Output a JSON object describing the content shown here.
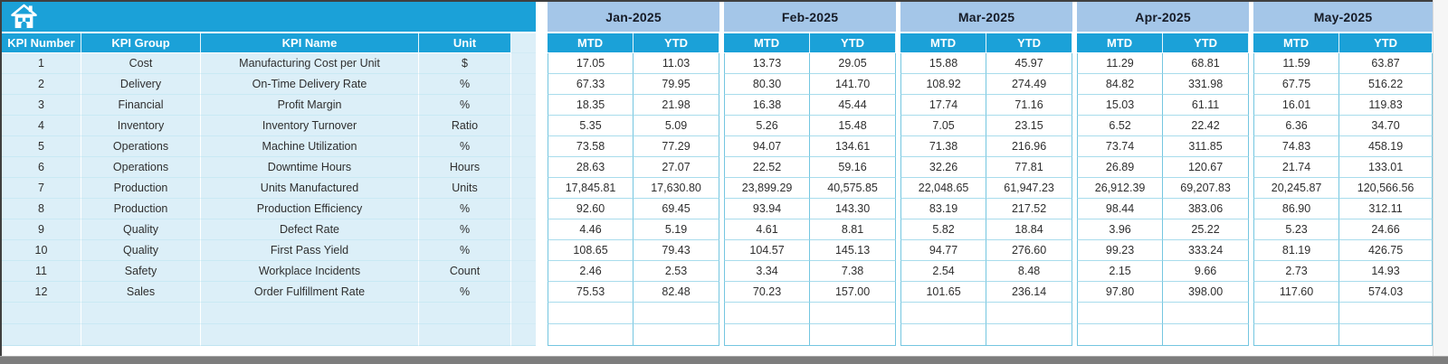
{
  "icons": {
    "home": "home-icon"
  },
  "colors": {
    "header_cyan": "#1BA1D8",
    "month_blue": "#A4C6E8",
    "left_fill": "#DCEFF8",
    "grid_vertical": "#74C6E0",
    "grid_horizontal": "#A8DCEC",
    "bottom_bar": "#7D7D7D"
  },
  "table": {
    "months": [
      "Jan-2025",
      "Feb-2025",
      "Mar-2025",
      "Apr-2025",
      "May-2025"
    ],
    "period_headers": [
      "MTD",
      "YTD"
    ],
    "left_headers": [
      "KPI Number",
      "KPI Group",
      "KPI Name",
      "Unit"
    ],
    "empty_row_count": 2,
    "rows": [
      {
        "number": "1",
        "group": "Cost",
        "name": "Manufacturing Cost per Unit",
        "unit": "$",
        "values": [
          "17.05",
          "11.03",
          "13.73",
          "29.05",
          "15.88",
          "45.97",
          "11.29",
          "68.81",
          "11.59",
          "63.87"
        ]
      },
      {
        "number": "2",
        "group": "Delivery",
        "name": "On-Time Delivery Rate",
        "unit": "%",
        "values": [
          "67.33",
          "79.95",
          "80.30",
          "141.70",
          "108.92",
          "274.49",
          "84.82",
          "331.98",
          "67.75",
          "516.22"
        ]
      },
      {
        "number": "3",
        "group": "Financial",
        "name": "Profit Margin",
        "unit": "%",
        "values": [
          "18.35",
          "21.98",
          "16.38",
          "45.44",
          "17.74",
          "71.16",
          "15.03",
          "61.11",
          "16.01",
          "119.83"
        ]
      },
      {
        "number": "4",
        "group": "Inventory",
        "name": "Inventory Turnover",
        "unit": "Ratio",
        "values": [
          "5.35",
          "5.09",
          "5.26",
          "15.48",
          "7.05",
          "23.15",
          "6.52",
          "22.42",
          "6.36",
          "34.70"
        ]
      },
      {
        "number": "5",
        "group": "Operations",
        "name": "Machine Utilization",
        "unit": "%",
        "values": [
          "73.58",
          "77.29",
          "94.07",
          "134.61",
          "71.38",
          "216.96",
          "73.74",
          "311.85",
          "74.83",
          "458.19"
        ]
      },
      {
        "number": "6",
        "group": "Operations",
        "name": "Downtime Hours",
        "unit": "Hours",
        "values": [
          "28.63",
          "27.07",
          "22.52",
          "59.16",
          "32.26",
          "77.81",
          "26.89",
          "120.67",
          "21.74",
          "133.01"
        ]
      },
      {
        "number": "7",
        "group": "Production",
        "name": "Units Manufactured",
        "unit": "Units",
        "values": [
          "17,845.81",
          "17,630.80",
          "23,899.29",
          "40,575.85",
          "22,048.65",
          "61,947.23",
          "26,912.39",
          "69,207.83",
          "20,245.87",
          "120,566.56"
        ]
      },
      {
        "number": "8",
        "group": "Production",
        "name": "Production Efficiency",
        "unit": "%",
        "values": [
          "92.60",
          "69.45",
          "93.94",
          "143.30",
          "83.19",
          "217.52",
          "98.44",
          "383.06",
          "86.90",
          "312.11"
        ]
      },
      {
        "number": "9",
        "group": "Quality",
        "name": "Defect Rate",
        "unit": "%",
        "values": [
          "4.46",
          "5.19",
          "4.61",
          "8.81",
          "5.82",
          "18.84",
          "3.96",
          "25.22",
          "5.23",
          "24.66"
        ]
      },
      {
        "number": "10",
        "group": "Quality",
        "name": "First Pass Yield",
        "unit": "%",
        "values": [
          "108.65",
          "79.43",
          "104.57",
          "145.13",
          "94.77",
          "276.60",
          "99.23",
          "333.24",
          "81.19",
          "426.75"
        ]
      },
      {
        "number": "11",
        "group": "Safety",
        "name": "Workplace Incidents",
        "unit": "Count",
        "values": [
          "2.46",
          "2.53",
          "3.34",
          "7.38",
          "2.54",
          "8.48",
          "2.15",
          "9.66",
          "2.73",
          "14.93"
        ]
      },
      {
        "number": "12",
        "group": "Sales",
        "name": "Order Fulfillment Rate",
        "unit": "%",
        "values": [
          "75.53",
          "82.48",
          "70.23",
          "157.00",
          "101.65",
          "236.14",
          "97.80",
          "398.00",
          "117.60",
          "574.03"
        ]
      }
    ]
  }
}
